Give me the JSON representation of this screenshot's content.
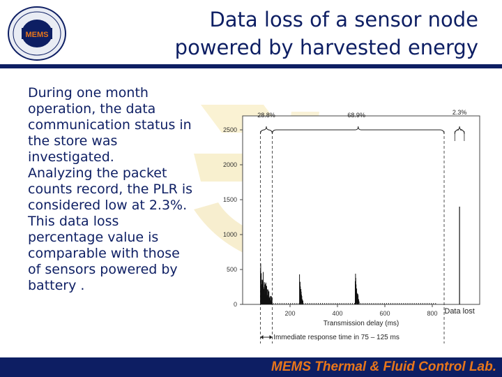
{
  "header": {
    "logo_text": "MEMS",
    "title_line1": "Data loss of a sensor node",
    "title_line2": "powered by harvested energy",
    "colors": {
      "navy": "#0d1e63",
      "accent": "#e8761b"
    }
  },
  "body": {
    "paragraphs": [
      "During one month operation, the data communication status in the store was investigated.",
      "Analyzing the packet counts record, the PLR is considered low at 2.3%.",
      "This data loss percentage value is comparable with those of sensors powered by battery ."
    ]
  },
  "chart_data": {
    "type": "bar",
    "xlabel": "Transmission delay (ms)",
    "xticks": [
      200,
      400,
      600,
      800
    ],
    "yticks": [
      0,
      500,
      1000,
      1500,
      2000,
      2500
    ],
    "xlim": [
      0,
      1000
    ],
    "ylim": [
      0,
      2700
    ],
    "grid": false,
    "annotations": {
      "pct_early": "28.8%",
      "pct_main": "68.9%",
      "pct_lost": "2.3%",
      "lost_label": "Data lost",
      "immediate_label": "Immediate response time in 75 – 125 ms"
    },
    "lost_bar_value": 1400,
    "bursts": [
      {
        "start": 75,
        "end": 125,
        "peak": 720
      },
      {
        "start": 240,
        "end": 255,
        "peak": 450
      },
      {
        "start": 475,
        "end": 492,
        "peak": 520
      }
    ]
  },
  "footer": {
    "text": "MEMS Thermal & Fluid Control Lab."
  }
}
